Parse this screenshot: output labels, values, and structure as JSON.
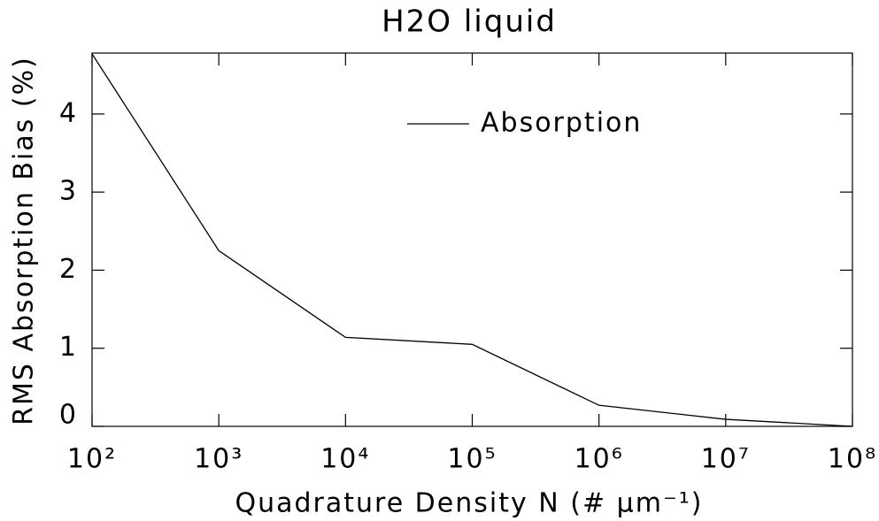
{
  "chart_data": {
    "type": "line",
    "title": "H2O liquid",
    "xlabel": "Quadrature Density N (# μm⁻¹)",
    "ylabel": "RMS Absorption Bias (%)",
    "xscale": "log",
    "x": [
      100,
      1000,
      10000,
      100000,
      1000000,
      10000000,
      100000000
    ],
    "series": [
      {
        "name": "Absorption",
        "color": "#000000",
        "values": [
          4.77,
          2.25,
          1.14,
          1.05,
          0.27,
          0.09,
          0.0
        ]
      }
    ],
    "xlim": [
      100,
      100000000
    ],
    "xticks": [
      {
        "value": 100,
        "label": "10²"
      },
      {
        "value": 1000,
        "label": "10³"
      },
      {
        "value": 10000,
        "label": "10⁴"
      },
      {
        "value": 100000,
        "label": "10⁵"
      },
      {
        "value": 1000000,
        "label": "10⁶"
      },
      {
        "value": 10000000,
        "label": "10⁷"
      },
      {
        "value": 100000000,
        "label": "10⁸"
      }
    ],
    "ylim": [
      0,
      4.78
    ],
    "yticks": [
      0,
      1,
      2,
      3,
      4
    ],
    "legend": "upper center"
  }
}
